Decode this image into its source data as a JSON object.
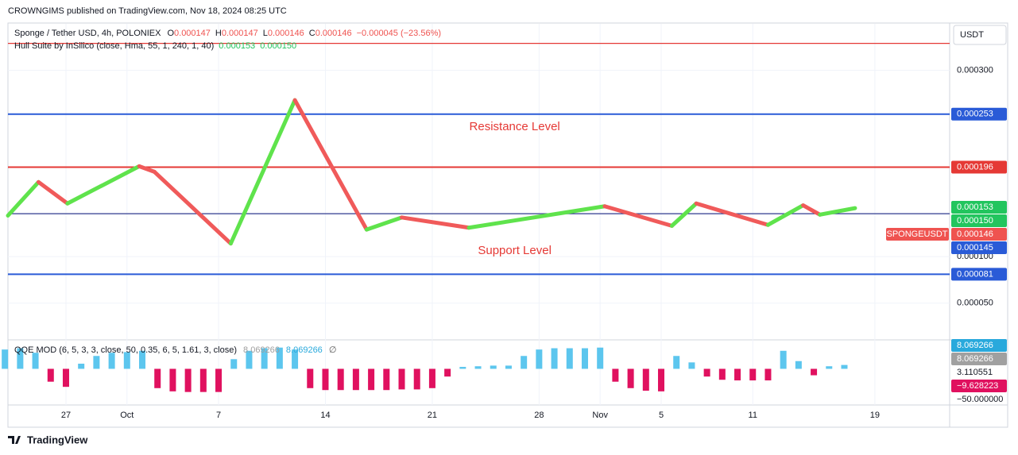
{
  "header": {
    "published": "CROWNGIMS published on TradingView.com, Nov 18, 2024 08:25 UTC"
  },
  "currency": "USDT",
  "legend": {
    "symbol": "Sponge / Tether USD, 4h, POLONIEX",
    "ohlc": [
      {
        "key": "O",
        "value": "0.000147"
      },
      {
        "key": "H",
        "value": "0.000147"
      },
      {
        "key": "L",
        "value": "0.000146"
      },
      {
        "key": "C",
        "value": "0.000146"
      }
    ],
    "change": "−0.000045 (−23.56%)",
    "hull": "Hull Suite by InSilico (close, Hma, 55, 1, 240, 1, 40)",
    "hull_values": [
      "0.000153",
      "0.000150"
    ]
  },
  "footer": "TradingView",
  "chart_data": [
    {
      "type": "line",
      "xlim": [
        23.2,
        84.9
      ],
      "xticks": [
        27,
        {
          "value": 31,
          "label": "Oct"
        },
        {
          "value": 37,
          "label": "7"
        },
        {
          "value": 44,
          "label": "14"
        },
        {
          "value": 51,
          "label": "21"
        },
        {
          "value": 58,
          "label": "28"
        },
        {
          "value": 62,
          "label": "Nov"
        },
        {
          "value": 66,
          "label": "5"
        },
        {
          "value": 72,
          "label": "11"
        },
        {
          "value": 80,
          "label": "19"
        }
      ],
      "ylim": [
        1.05e-05,
        0.00035
      ],
      "yticks": [
        {
          "value": 5e-05,
          "label": "0.000050"
        },
        {
          "value": 0.0001,
          "label": "0.000100"
        },
        {
          "value": 0.0003,
          "label": "0.000300"
        }
      ],
      "grid": true,
      "x": [
        23.2,
        25.2,
        27.1,
        31.8,
        32.8,
        37.8,
        42.0,
        46.7,
        49.0,
        53.4,
        62.3,
        66.7,
        68.3,
        73.0,
        75.3,
        76.4,
        78.7
      ],
      "values": [
        0.000144,
        0.00018,
        0.000157,
        0.000197,
        0.000191,
        0.000114,
        0.000268,
        0.000129,
        0.000142,
        0.000131,
        0.000154,
        0.000133,
        0.000157,
        0.000134,
        0.000155,
        0.000145,
        0.000152
      ],
      "up_color": "#5fe34c",
      "down_color": "#f05a5a",
      "levels": [
        {
          "value": 0.000329,
          "color": "#e53935"
        },
        {
          "value": 0.000253,
          "label": "0.000253",
          "color": "#2a5bd7"
        },
        {
          "value": 0.000196,
          "label": "0.000196",
          "color": "#e53935"
        },
        {
          "value": 0.000146,
          "color": "#2f3a8f"
        },
        {
          "value": 8.1e-05,
          "label": "0.000081",
          "color": "#2a5bd7"
        }
      ],
      "price_tags": [
        {
          "value": 0.000153,
          "label": "0.000153",
          "color": "#22c55e"
        },
        {
          "value": 0.00015,
          "label": "0.000150",
          "color": "#22c55e"
        },
        {
          "value": 0.000146,
          "label": "0.000146",
          "name": "SPONGEUSDT",
          "color": "#ef5350"
        },
        {
          "value": 0.000145,
          "label": "0.000145",
          "color": "#2a5bd7"
        }
      ],
      "annotations": [
        {
          "text": "Resistance Level",
          "x": 56.4,
          "y": 0.000239,
          "color": "#e53935"
        },
        {
          "text": "Support Level",
          "x": 56.4,
          "y": 0.000106,
          "color": "#e53935"
        }
      ]
    },
    {
      "type": "bar",
      "title": "QQE MOD (6, 5, 3, 3, close, 50, 0.35, 6, 5, 1.61, 3, close)",
      "legend_values": [
        {
          "text": "8.069266",
          "color": "#9e9e9e"
        },
        {
          "text": "8.069266",
          "color": "#29a9dc"
        },
        {
          "text": "∅",
          "color": "#555555"
        }
      ],
      "x": [
        23,
        24,
        25,
        26,
        27,
        28,
        29,
        30,
        31,
        32,
        33,
        34,
        35,
        36,
        37,
        38,
        39,
        40,
        41,
        42,
        43,
        44,
        45,
        46,
        47,
        48,
        49,
        50,
        51,
        52,
        53,
        54,
        55,
        56,
        57,
        58,
        59,
        60,
        61,
        62,
        63,
        64,
        65,
        66,
        67,
        68,
        69,
        70,
        71,
        72,
        73,
        74,
        75,
        76,
        77,
        78
      ],
      "values": [
        30,
        32,
        25,
        -20,
        -28,
        8,
        20,
        25,
        26,
        28,
        -30,
        -35,
        -36,
        -36,
        -36,
        15,
        28,
        32,
        33,
        30,
        -30,
        -33,
        -33,
        -33,
        -33,
        -33,
        -32,
        -32,
        -30,
        -12,
        3,
        4,
        5,
        5,
        20,
        30,
        32,
        32,
        32,
        33,
        -20,
        -30,
        -34,
        -35,
        20,
        10,
        -12,
        -17,
        -18,
        -18,
        -18,
        28,
        12,
        -10,
        4,
        6
      ],
      "ylim": [
        -50,
        45
      ],
      "yticks": [
        {
          "value": -50,
          "label": "−50.000000"
        }
      ],
      "pos_color": "#5cc6ee",
      "neg_color": "#e0115f",
      "tags": [
        {
          "value": 8.069266,
          "label": "8.069266",
          "color": "#29a9dc"
        },
        {
          "value": 8.069266,
          "label": "8.069266",
          "color": "#a0a0a0"
        },
        {
          "value": 3.110551,
          "label": "3.110551",
          "color": "#ffffff"
        },
        {
          "value": -9.628223,
          "label": "−9.628223",
          "color": "#e0115f"
        }
      ]
    }
  ]
}
